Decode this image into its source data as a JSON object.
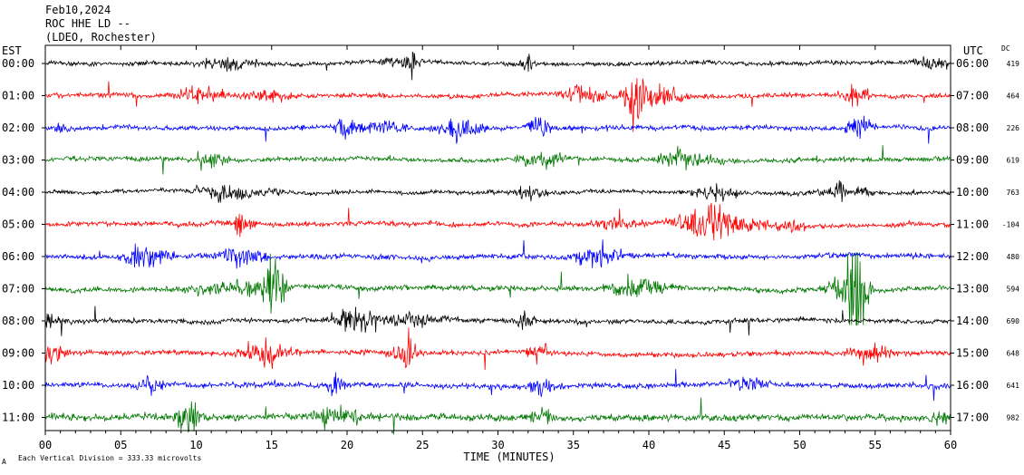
{
  "header": {
    "date": "Feb10,2024",
    "station": "ROC HHE LD --",
    "location": "(LDEO, Rochester)"
  },
  "labels": {
    "left_tz": "EST",
    "right_tz": "UTC",
    "dc": "DC",
    "xlabel": "TIME (MINUTES)",
    "footer_mark": "A",
    "footer": "Each Vertical Division =  333.33 microvolts"
  },
  "colors": {
    "black": "#000000",
    "red": "#ff0000",
    "blue": "#0000ff",
    "green": "#007700",
    "grid": "#000000"
  },
  "chart_data": {
    "type": "line",
    "subtype": "helicorder",
    "x_unit": "minutes",
    "xlim": [
      0,
      60
    ],
    "x_ticks": [
      "00",
      "05",
      "10",
      "15",
      "20",
      "25",
      "30",
      "35",
      "40",
      "45",
      "50",
      "55",
      "60"
    ],
    "rows": [
      {
        "est": "00:00",
        "utc": "06:00",
        "dc": "419",
        "color": "black",
        "activity": 0.55
      },
      {
        "est": "01:00",
        "utc": "07:00",
        "dc": "464",
        "color": "red",
        "activity": 0.6
      },
      {
        "est": "02:00",
        "utc": "08:00",
        "dc": "226",
        "color": "blue",
        "activity": 0.6
      },
      {
        "est": "03:00",
        "utc": "09:00",
        "dc": "619",
        "color": "green",
        "activity": 0.6
      },
      {
        "est": "04:00",
        "utc": "10:00",
        "dc": "763",
        "color": "black",
        "activity": 0.5
      },
      {
        "est": "05:00",
        "utc": "11:00",
        "dc": "-104",
        "color": "red",
        "activity": 0.6
      },
      {
        "est": "06:00",
        "utc": "12:00",
        "dc": "480",
        "color": "blue",
        "activity": 0.65
      },
      {
        "est": "07:00",
        "utc": "13:00",
        "dc": "594",
        "color": "green",
        "activity": 0.65
      },
      {
        "est": "08:00",
        "utc": "14:00",
        "dc": "690",
        "color": "black",
        "activity": 0.6
      },
      {
        "est": "09:00",
        "utc": "15:00",
        "dc": "648",
        "color": "red",
        "activity": 0.65
      },
      {
        "est": "10:00",
        "utc": "16:00",
        "dc": "641",
        "color": "blue",
        "activity": 0.7
      },
      {
        "est": "11:00",
        "utc": "17:00",
        "dc": "982",
        "color": "green",
        "activity": 0.85
      }
    ],
    "vertical_division_microvolts": 333.33
  }
}
